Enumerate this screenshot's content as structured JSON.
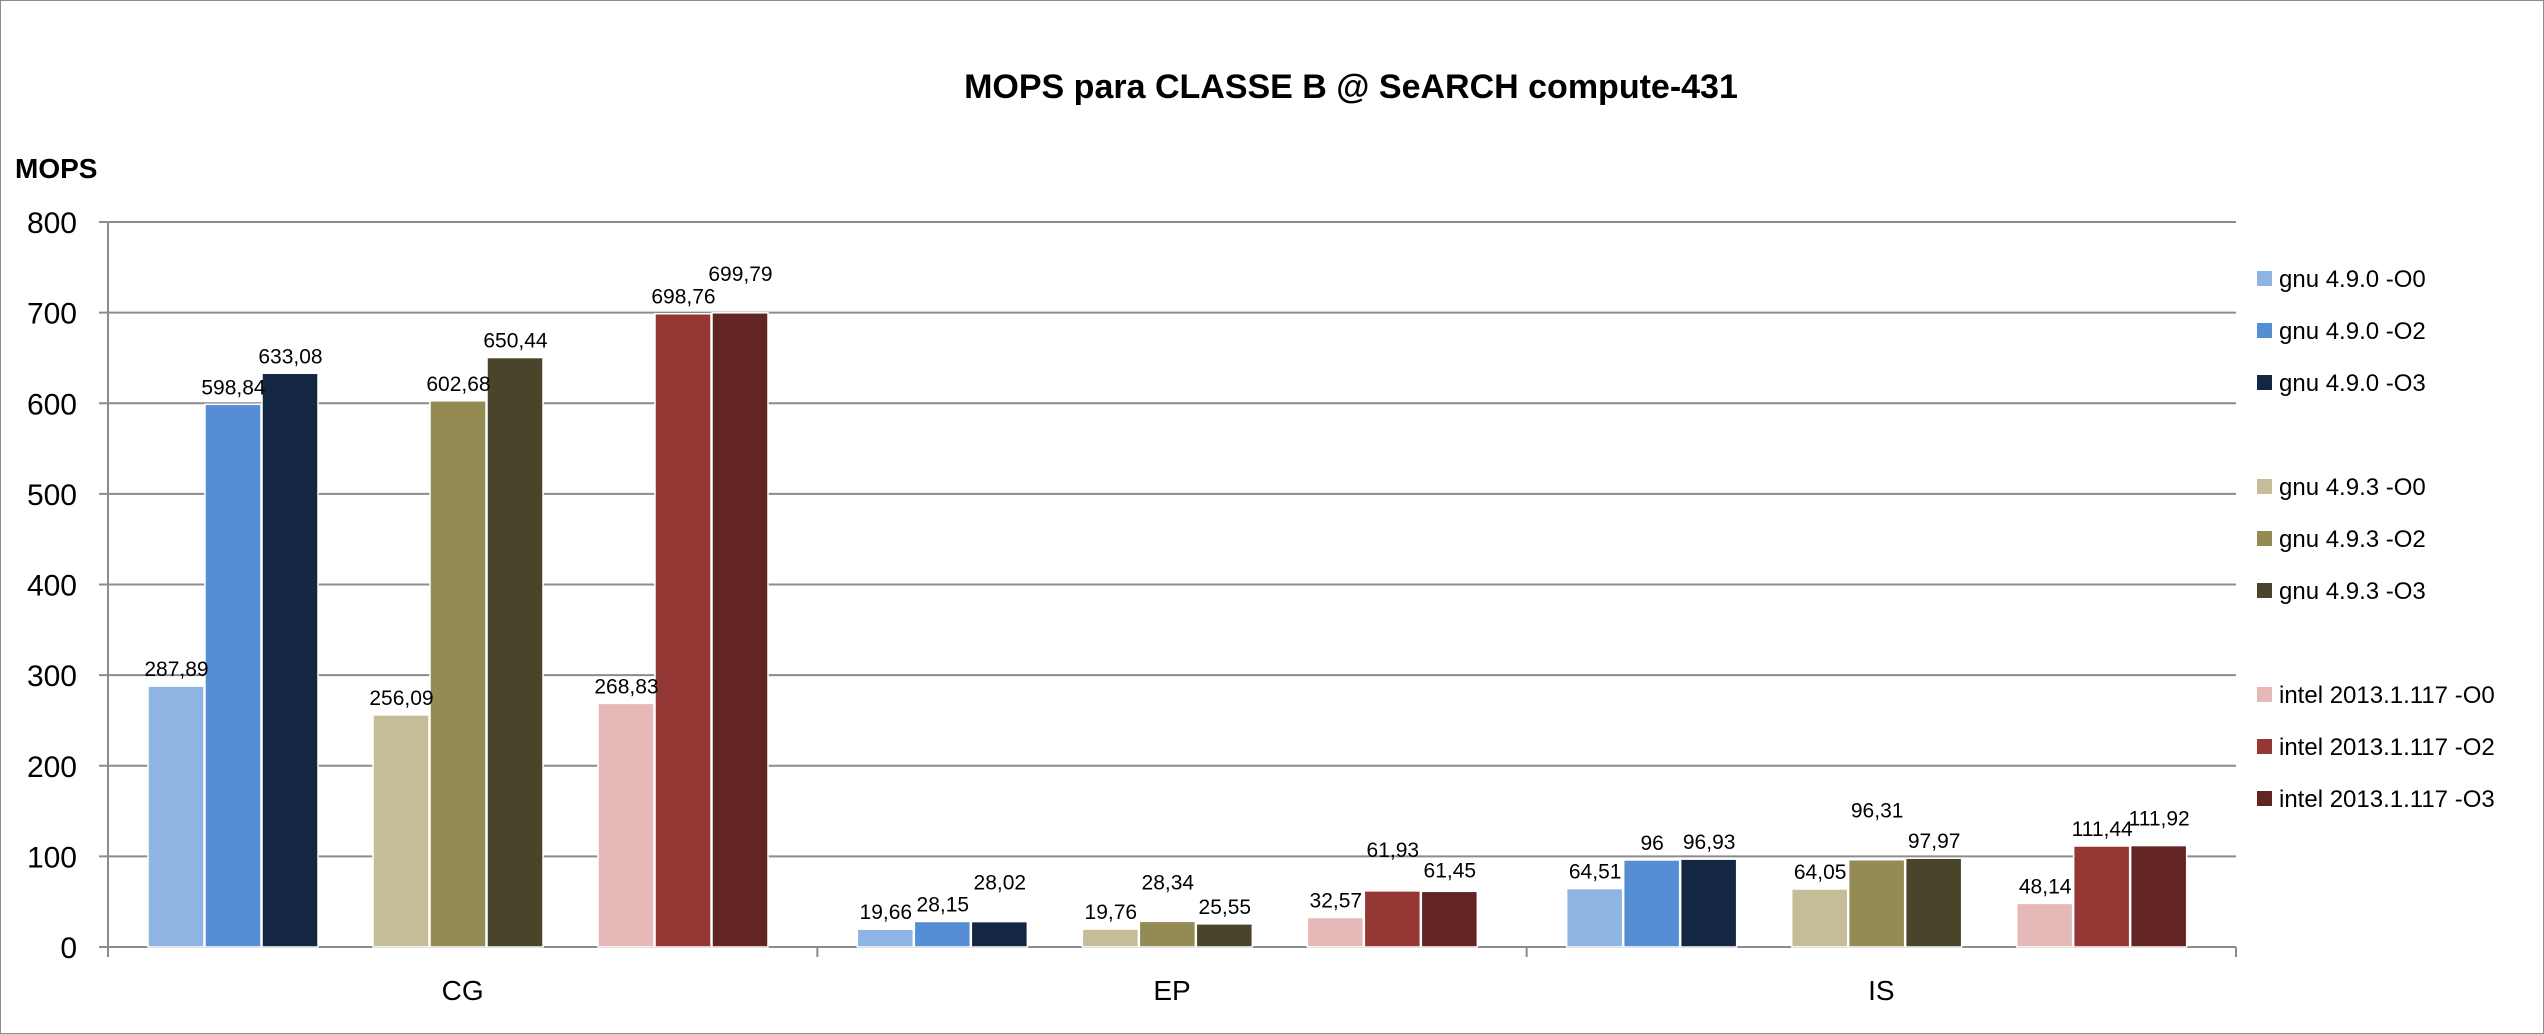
{
  "chart_data": {
    "type": "bar",
    "title": "MOPS para CLASSE B @ SeARCH compute-431",
    "ylabel": "MOPS",
    "xlabel": "",
    "ylim": [
      0,
      800
    ],
    "yticks": [
      "0",
      "100",
      "200",
      "300",
      "400",
      "500",
      "600",
      "700",
      "800"
    ],
    "grid": true,
    "legend_position": "right",
    "categories": [
      "CG",
      "EP",
      "IS"
    ],
    "series": [
      {
        "name": "gnu 4.9.0 -O0",
        "color": "#8eb4e3",
        "values": [
          287.89,
          19.66,
          64.51
        ],
        "labels": [
          "287,89",
          "19,66",
          "64,51"
        ]
      },
      {
        "name": "gnu 4.9.0 -O2",
        "color": "#558ed5",
        "values": [
          598.84,
          28.15,
          96
        ],
        "labels": [
          "598,84",
          "28,15",
          "96"
        ]
      },
      {
        "name": "gnu 4.9.0 -O3",
        "color": "#132642",
        "values": [
          633.08,
          28.02,
          96.93
        ],
        "labels": [
          "633,08",
          "28,02",
          "96,93"
        ]
      },
      {
        "name": "gnu 4.9.3 -O0",
        "color": "#c4bd97",
        "values": [
          256.09,
          19.76,
          64.05
        ],
        "labels": [
          "256,09",
          "19,76",
          "64,05"
        ]
      },
      {
        "name": "gnu 4.9.3 -O2",
        "color": "#948a54",
        "values": [
          602.68,
          28.34,
          96.31
        ],
        "labels": [
          "602,68",
          "28,34",
          "96,31"
        ]
      },
      {
        "name": "gnu 4.9.3 -O3",
        "color": "#4a452a",
        "values": [
          650.44,
          25.55,
          97.97
        ],
        "labels": [
          "650,44",
          "25,55",
          "97,97"
        ]
      },
      {
        "name": "intel 2013.1.117 -O0",
        "color": "#e6b9b8",
        "values": [
          268.83,
          32.57,
          48.14
        ],
        "labels": [
          "268,83",
          "32,57",
          "48,14"
        ]
      },
      {
        "name": "intel 2013.1.117 -O2",
        "color": "#953735",
        "values": [
          698.76,
          61.93,
          111.44
        ],
        "labels": [
          "698,76",
          "61,93",
          "111,44"
        ]
      },
      {
        "name": "intel 2013.1.117 -O3",
        "color": "#632523",
        "values": [
          699.79,
          61.45,
          111.92
        ],
        "labels": [
          "699,79",
          "61,45",
          "111,92"
        ]
      }
    ]
  }
}
